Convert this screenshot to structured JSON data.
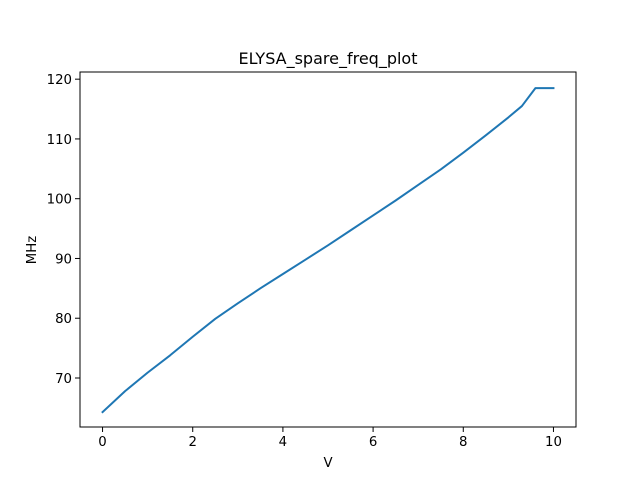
{
  "chart_data": {
    "type": "line",
    "title": "ELYSA_spare_freq_plot",
    "xlabel": "V",
    "ylabel": "MHz",
    "xlim": [
      -0.5,
      10.5
    ],
    "ylim": [
      61.8,
      121.2
    ],
    "xticks": [
      0,
      2,
      4,
      6,
      8,
      10
    ],
    "yticks": [
      70,
      80,
      90,
      100,
      110,
      120
    ],
    "xtick_labels": [
      "0",
      "2",
      "4",
      "6",
      "8",
      "10"
    ],
    "ytick_labels": [
      "70",
      "80",
      "90",
      "100",
      "110",
      "120"
    ],
    "grid": false,
    "legend": "none",
    "series": [
      {
        "color": "#1f77b4",
        "x": [
          0,
          0.5,
          1,
          1.5,
          2,
          2.5,
          3,
          3.5,
          4,
          4.5,
          5,
          5.5,
          6,
          6.5,
          7,
          7.5,
          8,
          8.5,
          9,
          9.3,
          9.6,
          10
        ],
        "y": [
          64.3,
          67.8,
          70.9,
          73.8,
          76.9,
          79.9,
          82.5,
          85.0,
          87.4,
          89.8,
          92.2,
          94.7,
          97.2,
          99.7,
          102.3,
          104.9,
          107.7,
          110.6,
          113.6,
          115.5,
          118.5,
          118.5
        ]
      }
    ]
  }
}
